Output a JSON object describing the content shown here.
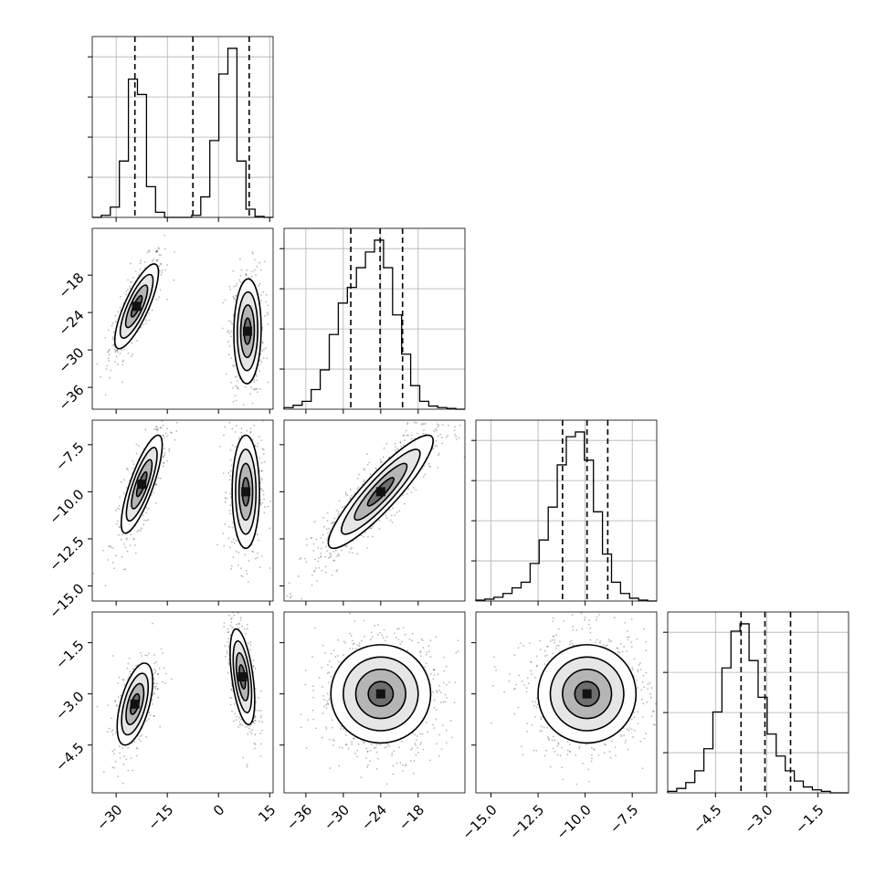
{
  "chart_data": {
    "type": "corner",
    "title": "",
    "grid": true,
    "parameters": [
      {
        "range": [
          -37,
          16
        ],
        "ticks": [
          -30,
          -15,
          0,
          15
        ],
        "tick_labels": [
          "−30",
          "−15",
          "0",
          "15"
        ],
        "quantiles": [
          -24.5,
          -7.5,
          9.0
        ]
      },
      {
        "range": [
          -39.5,
          -10.5
        ],
        "ticks": [
          -36,
          -30,
          -24,
          -18
        ],
        "tick_labels": [
          "−36",
          "−30",
          "−24",
          "−18"
        ],
        "quantiles": [
          -28.8,
          -24.1,
          -20.5
        ]
      },
      {
        "range": [
          -15.8,
          -6.2
        ],
        "ticks": [
          -15.0,
          -12.5,
          -10.0,
          -7.5
        ],
        "tick_labels": [
          "−15.0",
          "−12.5",
          "−10.0",
          "−7.5"
        ],
        "quantiles": [
          -11.2,
          -9.9,
          -8.8
        ]
      },
      {
        "range": [
          -5.9,
          -0.6
        ],
        "ticks": [
          -4.5,
          -3.0,
          -1.5
        ],
        "tick_labels": [
          "−4.5",
          "−3.0",
          "−1.5"
        ],
        "quantiles": [
          -3.75,
          -3.05,
          -2.3
        ]
      }
    ],
    "histograms": [
      {
        "start": -37,
        "bin_width": 2.65,
        "counts": [
          0,
          2,
          10,
          55,
          135,
          120,
          30,
          5,
          0,
          0,
          0,
          2,
          20,
          75,
          140,
          165,
          55,
          8,
          1,
          0
        ]
      },
      {
        "start": -39.5,
        "bin_width": 1.45,
        "counts": [
          2,
          5,
          10,
          25,
          50,
          95,
          135,
          155,
          180,
          200,
          215,
          180,
          120,
          70,
          30,
          10,
          4,
          2,
          1,
          0
        ]
      },
      {
        "start": -15.8,
        "bin_width": 0.48,
        "counts": [
          1,
          2,
          4,
          8,
          14,
          20,
          40,
          65,
          100,
          145,
          175,
          180,
          150,
          95,
          50,
          20,
          8,
          3,
          1,
          0
        ]
      },
      {
        "start": -5.9,
        "bin_width": 0.265,
        "counts": [
          1,
          3,
          7,
          15,
          30,
          55,
          85,
          110,
          115,
          90,
          65,
          40,
          25,
          15,
          8,
          4,
          2,
          1,
          0,
          0
        ]
      }
    ],
    "pairs": [
      {
        "row": 1,
        "col": 0,
        "clusters": [
          {
            "cx": -24,
            "cy": -23,
            "sx": 3.2,
            "sy": 3.4,
            "rho": 0.8,
            "w": 0.5
          },
          {
            "cx": 8.5,
            "cy": -27,
            "sx": 2.0,
            "sy": 4.2,
            "rho": 0.05,
            "w": 0.5
          }
        ]
      },
      {
        "row": 2,
        "col": 0,
        "clusters": [
          {
            "cx": -22.5,
            "cy": -9.6,
            "sx": 3.0,
            "sy": 1.3,
            "rho": 0.8,
            "w": 0.5
          },
          {
            "cx": 8.0,
            "cy": -10.0,
            "sx": 2.0,
            "sy": 1.5,
            "rho": 0.0,
            "w": 0.5
          }
        ]
      },
      {
        "row": 3,
        "col": 0,
        "clusters": [
          {
            "cx": -24.5,
            "cy": -3.3,
            "sx": 2.6,
            "sy": 0.6,
            "rho": 0.55,
            "w": 0.5
          },
          {
            "cx": 7.0,
            "cy": -2.5,
            "sx": 1.8,
            "sy": 0.7,
            "rho": -0.5,
            "w": 0.5
          }
        ]
      },
      {
        "row": 2,
        "col": 1,
        "clusters": [
          {
            "cx": -24.0,
            "cy": -10.0,
            "sx": 4.2,
            "sy": 1.5,
            "rho": 0.9,
            "w": 1.0
          }
        ]
      },
      {
        "row": 3,
        "col": 1,
        "clusters": [
          {
            "cx": -24.0,
            "cy": -3.0,
            "sx": 4.0,
            "sy": 0.72,
            "rho": 0.0,
            "w": 1.0
          }
        ]
      },
      {
        "row": 3,
        "col": 2,
        "clusters": [
          {
            "cx": -9.9,
            "cy": -3.0,
            "sx": 1.3,
            "sy": 0.72,
            "rho": 0.0,
            "w": 1.0
          }
        ]
      }
    ]
  }
}
